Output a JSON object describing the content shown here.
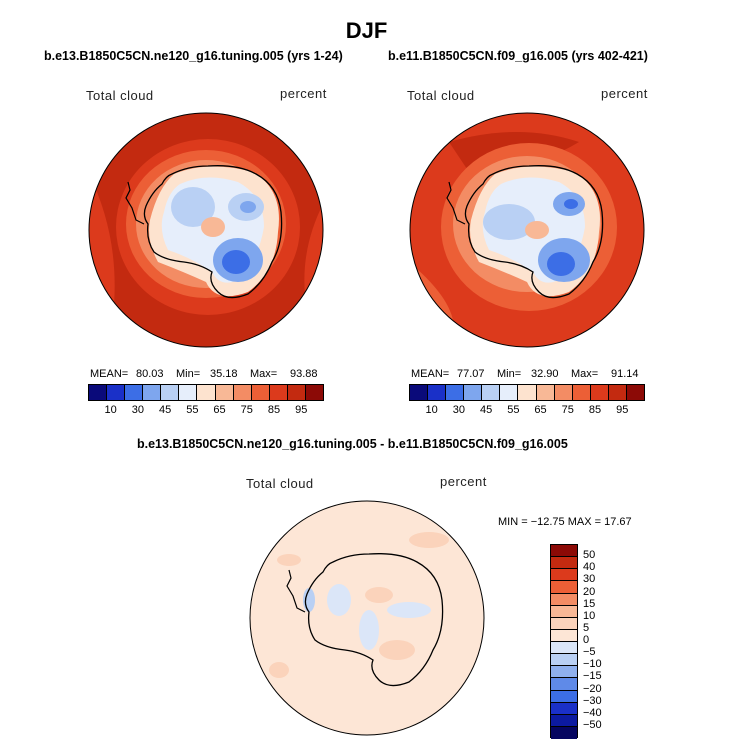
{
  "title": "DJF",
  "panels": [
    {
      "case_title": "b.e13.B1850C5CN.ne120_g16.tuning.005 (yrs 1-24)",
      "left_label": "Total cloud",
      "right_label": "percent",
      "stats": {
        "mean_label": "MEAN=",
        "mean": "80.03",
        "min_label": "Min=",
        "min": "35.18",
        "max_label": "Max=",
        "max": "93.88"
      }
    },
    {
      "case_title": "b.e11.B1850C5CN.f09_g16.005 (yrs 402-421)",
      "left_label": "Total cloud",
      "right_label": "percent",
      "stats": {
        "mean_label": "MEAN=",
        "mean": "77.07",
        "min_label": "Min=",
        "min": "32.90",
        "max_label": "Max=",
        "max": "91.14"
      }
    }
  ],
  "diff_panel": {
    "case_title": "b.e13.B1850C5CN.ne120_g16.tuning.005 - b.e11.B1850C5CN.f09_g16.005",
    "left_label": "Total cloud",
    "right_label": "percent",
    "stats_text": "MIN = −12.75 MAX =  17.67"
  },
  "chart_data": {
    "type": "heatmap",
    "projection": "south polar stereographic",
    "field_colorbar": {
      "ticks": [
        "10",
        "30",
        "45",
        "55",
        "65",
        "75",
        "85",
        "95"
      ],
      "colors": [
        "#0a0a7a",
        "#1a30c8",
        "#3c6ee6",
        "#7ea6ee",
        "#b9d0f4",
        "#e6eefb",
        "#fde3cf",
        "#f8b896",
        "#f38c64",
        "#ec5f36",
        "#dc3a1c",
        "#c32a10",
        "#8c0a06"
      ]
    },
    "diff_colorbar": {
      "ticks": [
        "50",
        "40",
        "30",
        "20",
        "15",
        "10",
        "5",
        "0",
        "−5",
        "−10",
        "−15",
        "−20",
        "−30",
        "−40",
        "−50"
      ],
      "colors": [
        "#8c0a06",
        "#c32a10",
        "#dc3a1c",
        "#ec5f36",
        "#f38c64",
        "#f8b896",
        "#fbd3bb",
        "#fde6d6",
        "#dbe6f8",
        "#b9d0f4",
        "#8fb0ee",
        "#5f8ae8",
        "#3c6ee6",
        "#1a30c8",
        "#0c1aa0",
        "#050560"
      ]
    }
  }
}
